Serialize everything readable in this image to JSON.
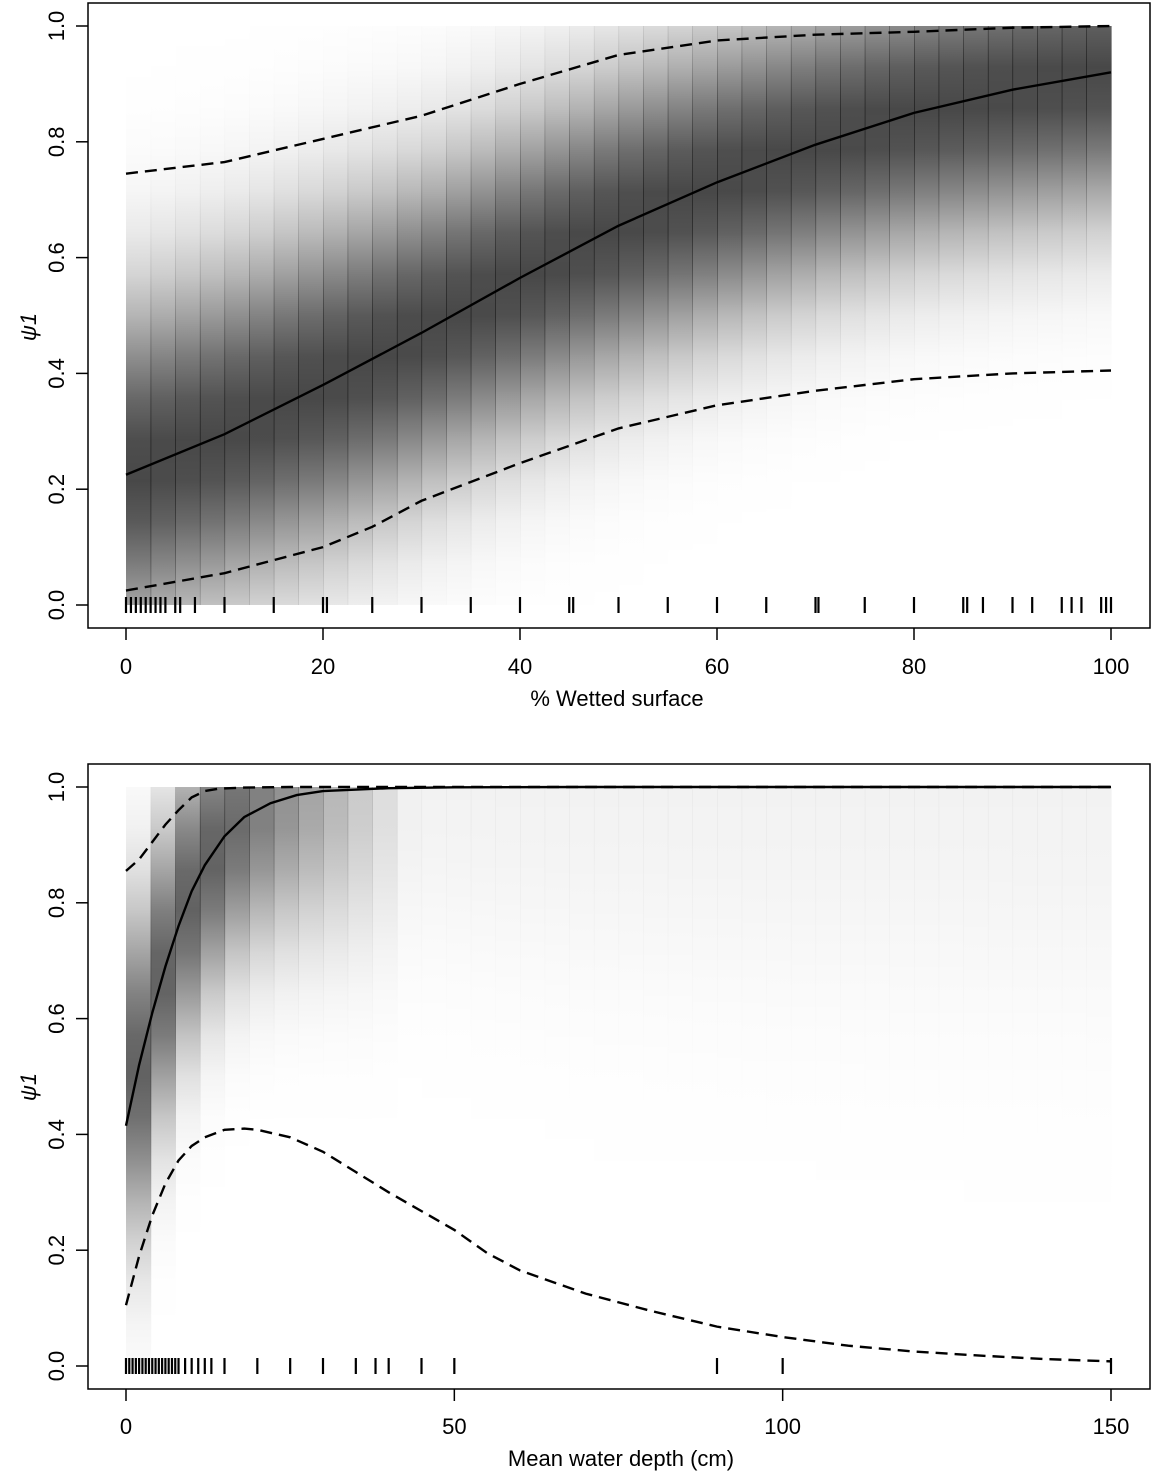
{
  "chart_data": [
    {
      "type": "line",
      "xlabel": "% Wetted surface",
      "ylabel": "ψ1",
      "xlim": [
        0,
        100
      ],
      "ylim": [
        0,
        1
      ],
      "xticks": [
        0,
        20,
        40,
        60,
        80,
        100
      ],
      "yticks": [
        0.0,
        0.2,
        0.4,
        0.6,
        0.8,
        1.0
      ],
      "xtick_labels": [
        "0",
        "20",
        "40",
        "60",
        "80",
        "100"
      ],
      "ytick_labels": [
        "0.0",
        "0.2",
        "0.4",
        "0.6",
        "0.8",
        "1.0"
      ],
      "grid": false,
      "background": "posterior density shading (grayscale)",
      "series": [
        {
          "style": "solid",
          "x": [
            0,
            10,
            20,
            30,
            40,
            50,
            60,
            70,
            80,
            90,
            100
          ],
          "y": [
            0.225,
            0.295,
            0.38,
            0.47,
            0.565,
            0.655,
            0.73,
            0.795,
            0.85,
            0.89,
            0.92
          ]
        },
        {
          "style": "dashed",
          "x": [
            0,
            10,
            20,
            30,
            40,
            50,
            60,
            70,
            80,
            90,
            100
          ],
          "y": [
            0.745,
            0.765,
            0.805,
            0.845,
            0.9,
            0.95,
            0.975,
            0.985,
            0.99,
            0.997,
            1.0
          ]
        },
        {
          "style": "dashed",
          "x": [
            0,
            10,
            20,
            25,
            30,
            40,
            50,
            60,
            70,
            80,
            90,
            100
          ],
          "y": [
            0.025,
            0.055,
            0.1,
            0.135,
            0.18,
            0.245,
            0.305,
            0.345,
            0.37,
            0.39,
            0.4,
            0.405
          ]
        }
      ],
      "rug": [
        0,
        0.5,
        1,
        1.5,
        2,
        2.5,
        3,
        3.5,
        4,
        5,
        5.5,
        7,
        10,
        15,
        20,
        20.4,
        25,
        30,
        35,
        40,
        45,
        45.4,
        50,
        55,
        60,
        65,
        70,
        70.3,
        75,
        80,
        85,
        85.4,
        87,
        90,
        92,
        95,
        96,
        97,
        99,
        99.5,
        100
      ]
    },
    {
      "type": "line",
      "xlabel": "Mean water depth (cm)",
      "ylabel": "ψ1",
      "xlim": [
        0,
        150
      ],
      "ylim": [
        0,
        1
      ],
      "xticks": [
        0,
        50,
        100,
        150
      ],
      "yticks": [
        0.0,
        0.2,
        0.4,
        0.6,
        0.8,
        1.0
      ],
      "xtick_labels": [
        "0",
        "50",
        "100",
        "150"
      ],
      "ytick_labels": [
        "0.0",
        "0.2",
        "0.4",
        "0.6",
        "0.8",
        "1.0"
      ],
      "grid": false,
      "background": "posterior density shading (grayscale)",
      "series": [
        {
          "style": "solid",
          "x": [
            0,
            2,
            4,
            6,
            8,
            10,
            12,
            15,
            18,
            22,
            26,
            30,
            40,
            50,
            70,
            100,
            150
          ],
          "y": [
            0.415,
            0.52,
            0.61,
            0.69,
            0.76,
            0.82,
            0.865,
            0.915,
            0.948,
            0.972,
            0.986,
            0.993,
            0.998,
            0.9995,
            1.0,
            1.0,
            1.0
          ]
        },
        {
          "style": "dashed",
          "x": [
            0,
            2,
            4,
            6,
            8,
            10,
            12,
            14,
            18,
            25,
            40,
            150
          ],
          "y": [
            0.855,
            0.875,
            0.905,
            0.935,
            0.96,
            0.982,
            0.993,
            0.997,
            0.999,
            1.0,
            1.0,
            1.0
          ]
        },
        {
          "style": "dashed",
          "x": [
            0,
            2,
            4,
            6,
            8,
            10,
            12,
            15,
            18,
            20,
            25,
            30,
            35,
            40,
            50,
            55,
            60,
            70,
            80,
            90,
            100,
            110,
            120,
            130,
            140,
            150
          ],
          "y": [
            0.105,
            0.19,
            0.26,
            0.315,
            0.355,
            0.38,
            0.395,
            0.408,
            0.41,
            0.408,
            0.395,
            0.37,
            0.335,
            0.3,
            0.235,
            0.195,
            0.165,
            0.125,
            0.095,
            0.068,
            0.05,
            0.035,
            0.025,
            0.018,
            0.012,
            0.008
          ]
        }
      ],
      "rug": [
        0,
        0.5,
        1,
        1.5,
        2,
        2.5,
        3,
        3.5,
        4,
        4.5,
        5,
        5.5,
        6,
        6.5,
        7,
        7.5,
        8,
        9,
        10,
        11,
        12,
        13,
        15,
        20,
        25,
        30,
        35,
        38,
        40,
        45,
        50,
        90,
        100,
        150
      ]
    }
  ]
}
